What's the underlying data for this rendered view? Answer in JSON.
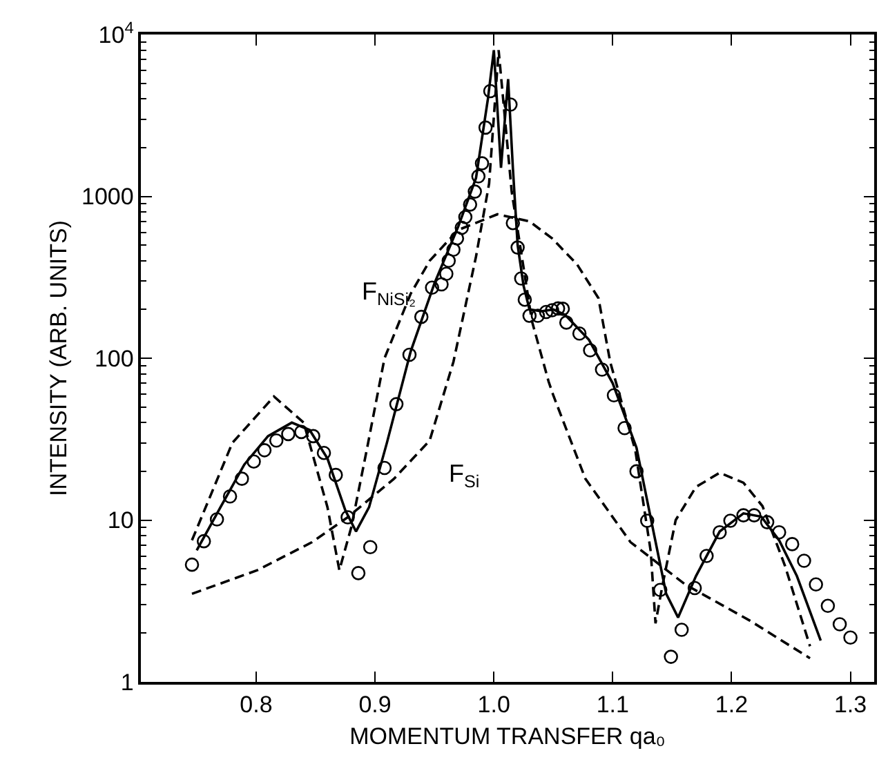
{
  "chart_data": {
    "type": "line",
    "xlabel": "MOMENTUM TRANSFER qa₀",
    "ylabel": "INTENSITY (ARB. UNITS)",
    "log": "y",
    "legend": false,
    "xlim": [
      0.703,
      1.32
    ],
    "xticks": [
      0.8,
      0.9,
      {
        "value": 1.0,
        "label": "1.0"
      },
      1.1,
      1.2,
      1.3
    ],
    "ylim": [
      1,
      10000
    ],
    "yticks": [
      1,
      10,
      100,
      1000,
      {
        "value": 10000,
        "label": "10$^{4}$"
      }
    ],
    "series": [
      {
        "type": "scatter",
        "marker": "circle",
        "color": "#000000",
        "x": [
          0.746,
          0.756,
          0.767,
          0.778,
          0.788,
          0.798,
          0.807,
          0.817,
          0.827,
          0.838,
          0.848,
          0.857,
          0.867,
          0.877,
          0.886,
          0.896,
          0.908,
          0.918,
          0.929,
          0.939,
          0.948,
          0.956,
          0.96,
          0.962,
          0.966,
          0.969,
          0.973,
          0.976,
          0.98,
          0.984,
          0.987,
          0.99,
          0.993,
          0.997,
          1.014,
          1.016,
          1.02,
          1.023,
          1.026,
          1.03,
          1.037,
          1.044,
          1.049,
          1.054,
          1.058,
          1.061,
          1.072,
          1.081,
          1.091,
          1.101,
          1.11,
          1.12,
          1.129,
          1.14,
          1.149,
          1.158,
          1.169,
          1.179,
          1.19,
          1.199,
          1.21,
          1.219,
          1.23,
          1.24,
          1.251,
          1.261,
          1.271,
          1.281,
          1.291,
          1.3
        ],
        "values": [
          5.3,
          7.4,
          10.1,
          14,
          18,
          23,
          27,
          31,
          34,
          35,
          33,
          26,
          19,
          10.4,
          4.7,
          6.8,
          21,
          52,
          105,
          180,
          273,
          286,
          332,
          400,
          468,
          550,
          640,
          745,
          890,
          1070,
          1330,
          1600,
          2660,
          4470,
          3690,
          684,
          483,
          311,
          230,
          183,
          183,
          193,
          198,
          203,
          202,
          166,
          142,
          112,
          85,
          59,
          37,
          20,
          9.9,
          3.7,
          1.43,
          2.1,
          3.8,
          6.0,
          8.4,
          9.9,
          10.7,
          10.7,
          9.7,
          8.4,
          7.1,
          5.6,
          4.0,
          2.95,
          2.27,
          1.88
        ]
      },
      {
        "marker": "none",
        "line_style": "solid",
        "color": "#000000",
        "x": [
          0.75,
          0.77,
          0.79,
          0.81,
          0.83,
          0.845,
          0.86,
          0.875,
          0.884,
          0.895,
          0.91,
          0.93,
          0.95,
          0.97,
          0.985,
          0.995,
          1.0,
          1.006,
          1.012,
          1.016,
          1.02,
          1.025,
          1.03,
          1.04,
          1.05,
          1.06,
          1.08,
          1.1,
          1.12,
          1.135,
          1.145,
          1.155,
          1.17,
          1.19,
          1.21,
          1.225,
          1.24,
          1.255,
          1.275
        ],
        "values": [
          6.5,
          12,
          22,
          33,
          40,
          36,
          24,
          11.5,
          8.5,
          12,
          30,
          110,
          290,
          650,
          1300,
          4000,
          8000,
          1500,
          5300,
          1500,
          500,
          280,
          200,
          195,
          200,
          185,
          130,
          70,
          28,
          8,
          3.5,
          2.5,
          4.5,
          8.5,
          11,
          10.5,
          7.5,
          4.5,
          1.8
        ]
      },
      {
        "name": "F$_{NiSi₂}$",
        "marker": "none",
        "line_style": "dashed",
        "color": "#000000",
        "x": [
          0.746,
          0.78,
          0.815,
          0.84,
          0.86,
          0.87,
          0.88,
          0.893,
          0.908,
          0.93,
          0.946,
          0.97,
          1.003,
          1.03,
          1.049,
          1.07,
          1.088,
          1.098,
          1.119,
          1.132,
          1.136,
          1.142,
          1.153,
          1.17,
          1.19,
          1.21,
          1.226,
          1.245,
          1.266
        ],
        "values": [
          7.5,
          30,
          58,
          40,
          12,
          4.9,
          9,
          27,
          100,
          250,
          400,
          620,
          775,
          700,
          550,
          380,
          235,
          94,
          27,
          6.4,
          2.3,
          4,
          10,
          16,
          19.6,
          17,
          12.2,
          5.2,
          1.66
        ]
      },
      {
        "name": "F$_{Si}$",
        "marker": "none",
        "line_style": "dashed",
        "color": "#000000",
        "x": [
          0.746,
          0.801,
          0.847,
          0.877,
          0.916,
          0.946,
          0.966,
          0.985,
          0.996,
          1.004,
          1.015,
          1.032,
          1.046,
          1.05,
          1.077,
          1.115,
          1.161,
          1.215,
          1.266
        ],
        "values": [
          3.5,
          4.9,
          7.3,
          10.4,
          18,
          31,
          95,
          425,
          1200,
          8000,
          1070,
          170,
          72,
          59,
          18,
          7.3,
          4.0,
          2.4,
          1.4
        ]
      }
    ]
  }
}
